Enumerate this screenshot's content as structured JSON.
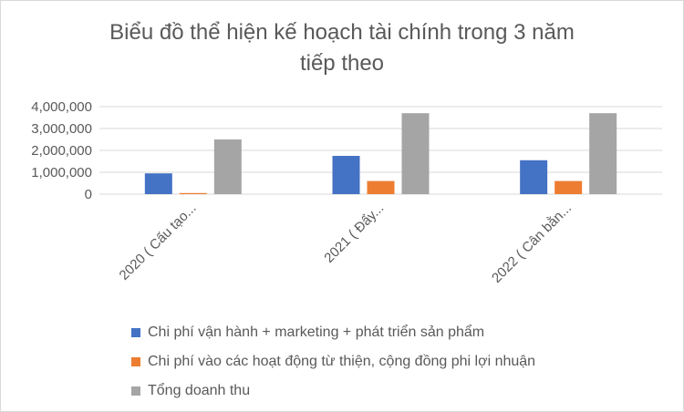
{
  "chart_data": {
    "type": "bar",
    "title_lines": [
      "Biểu đồ thể hiện kế hoạch tài chính trong 3 năm",
      "tiếp theo"
    ],
    "categories": [
      "2020 ( Cấu tạo...",
      "2021 ( Đẩy...",
      "2022 ( Cân bằn..."
    ],
    "series": [
      {
        "name": "Chi phí vận hành + marketing + phát triển sản phẩm",
        "color": "#4472C4",
        "values": [
          950000,
          1750000,
          1550000
        ]
      },
      {
        "name": "Chi phí vào các hoạt động từ thiện, cộng đồng phi lợi nhuận",
        "color": "#ED7D31",
        "values": [
          50000,
          600000,
          600000
        ]
      },
      {
        "name": "Tổng doanh thu",
        "color": "#A5A5A5",
        "values": [
          2500000,
          3700000,
          3700000
        ]
      }
    ],
    "yticks": [
      "0",
      "1,000,000",
      "2,000,000",
      "3,000,000",
      "4,000,000"
    ],
    "ylim": [
      0,
      4000000
    ],
    "grid": true,
    "legend_position": "bottom"
  }
}
